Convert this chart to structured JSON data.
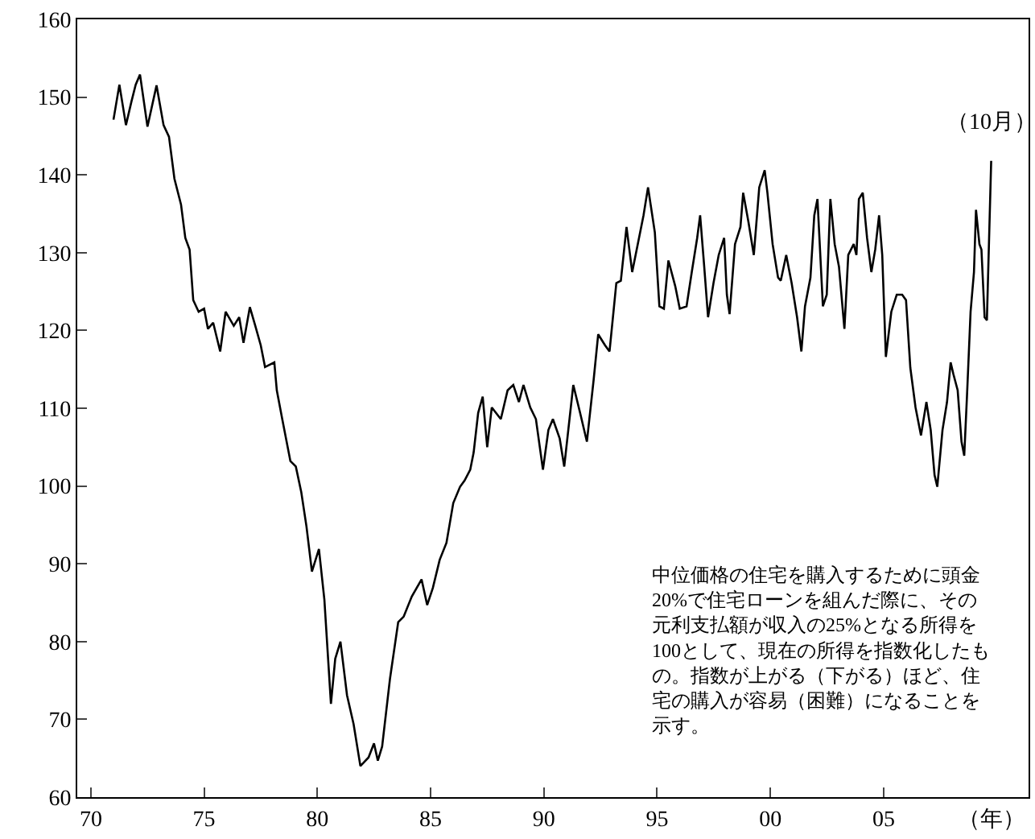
{
  "chart_data": {
    "type": "line",
    "xlabel": "（年）",
    "x": [
      1971.0,
      1971.26,
      1971.55,
      1971.79,
      1971.98,
      1972.17,
      1972.5,
      1972.9,
      1973.21,
      1973.45,
      1973.69,
      1973.98,
      1974.17,
      1974.36,
      1974.52,
      1974.76,
      1975.0,
      1975.17,
      1975.4,
      1975.71,
      1975.95,
      1976.31,
      1976.55,
      1976.74,
      1977.02,
      1977.26,
      1977.5,
      1977.69,
      1978.1,
      1978.21,
      1978.45,
      1978.81,
      1979.05,
      1979.29,
      1979.52,
      1979.76,
      1980.07,
      1980.31,
      1980.6,
      1980.79,
      1981.02,
      1981.31,
      1981.6,
      1981.9,
      1982.26,
      1982.5,
      1982.67,
      1982.86,
      1983.21,
      1983.57,
      1983.81,
      1984.17,
      1984.6,
      1984.85,
      1985.1,
      1985.4,
      1985.7,
      1986.0,
      1986.3,
      1986.5,
      1986.75,
      1986.9,
      1987.1,
      1987.3,
      1987.5,
      1987.7,
      1988.1,
      1988.4,
      1988.65,
      1988.9,
      1989.1,
      1989.4,
      1989.65,
      1989.96,
      1990.2,
      1990.4,
      1990.7,
      1990.9,
      1991.3,
      1991.6,
      1991.9,
      1992.2,
      1992.4,
      1992.7,
      1992.9,
      1993.2,
      1993.4,
      1993.65,
      1993.9,
      1994.4,
      1994.6,
      1994.9,
      1995.1,
      1995.3,
      1995.5,
      1995.8,
      1996.0,
      1996.3,
      1996.53,
      1996.77,
      1996.9,
      1997.08,
      1997.25,
      1997.49,
      1997.72,
      1997.96,
      1998.08,
      1998.2,
      1998.44,
      1998.68,
      1998.8,
      1999.03,
      1999.27,
      1999.51,
      1999.75,
      1999.87,
      2000.1,
      2000.34,
      2000.46,
      2000.7,
      2000.94,
      2001.18,
      2001.37,
      2001.53,
      2001.77,
      2001.94,
      2002.08,
      2002.32,
      2002.49,
      2002.65,
      2002.84,
      2003.03,
      2003.27,
      2003.44,
      2003.68,
      2003.8,
      2003.91,
      2004.08,
      2004.27,
      2004.46,
      2004.63,
      2004.8,
      2004.94,
      2005.1,
      2005.34,
      2005.58,
      2005.82,
      2005.99,
      2006.18,
      2006.41,
      2006.65,
      2006.89,
      2007.08,
      2007.25,
      2007.37,
      2007.6,
      2007.8,
      2007.96,
      2008.08,
      2008.27,
      2008.44,
      2008.56,
      2008.68,
      2008.84,
      2008.99,
      2009.08,
      2009.23,
      2009.32,
      2009.46,
      2009.56,
      2009.75
    ],
    "series": [
      {
        "color": "#000000",
        "values": [
          147.1,
          151.6,
          146.4,
          149.4,
          151.6,
          152.9,
          146.2,
          151.5,
          146.4,
          144.9,
          139.5,
          136.2,
          131.9,
          130.4,
          123.9,
          122.4,
          122.8,
          120.2,
          121.0,
          117.3,
          122.4,
          120.6,
          121.7,
          118.4,
          123.0,
          120.6,
          118.1,
          115.3,
          115.9,
          112.3,
          108.6,
          103.2,
          102.5,
          99.2,
          94.8,
          89.0,
          91.9,
          85.4,
          72.0,
          77.8,
          80.0,
          73.1,
          69.4,
          64.0,
          65.1,
          66.9,
          64.7,
          66.5,
          75.3,
          82.5,
          83.2,
          85.8,
          88.0,
          84.7,
          86.9,
          90.5,
          92.7,
          97.8,
          99.9,
          100.7,
          102.1,
          104.3,
          109.4,
          111.5,
          105.0,
          110.1,
          108.6,
          112.3,
          113.0,
          110.8,
          113.0,
          110.1,
          108.6,
          102.1,
          107.2,
          108.6,
          106.1,
          102.5,
          113.0,
          109.4,
          105.7,
          113.7,
          119.5,
          118.1,
          117.3,
          126.1,
          126.4,
          133.3,
          127.5,
          134.8,
          138.4,
          132.6,
          123.1,
          122.8,
          129.0,
          125.7,
          122.8,
          123.1,
          127.5,
          131.9,
          134.8,
          128.2,
          121.7,
          126.1,
          129.7,
          131.9,
          124.6,
          122.1,
          131.1,
          133.3,
          137.7,
          134.0,
          129.7,
          138.4,
          140.6,
          137.7,
          131.1,
          126.8,
          126.4,
          129.7,
          126.1,
          121.7,
          117.3,
          123.1,
          126.8,
          134.8,
          136.9,
          123.1,
          124.6,
          136.9,
          131.1,
          128.2,
          120.2,
          129.7,
          131.1,
          129.7,
          136.9,
          137.7,
          131.9,
          127.5,
          130.4,
          134.8,
          129.7,
          116.6,
          122.4,
          124.6,
          124.6,
          123.9,
          115.2,
          110.1,
          106.5,
          110.8,
          107.2,
          101.4,
          99.9,
          107.2,
          110.8,
          115.9,
          114.4,
          112.3,
          105.7,
          103.9,
          111.5,
          122.4,
          127.5,
          135.5,
          131.1,
          130.4,
          121.7,
          121.3,
          141.8
        ]
      }
    ],
    "xlim": [
      1969.4,
      2011.4
    ],
    "xticks": [
      {
        "value": 1970,
        "label": "70"
      },
      {
        "value": 1975,
        "label": "75"
      },
      {
        "value": 1980,
        "label": "80"
      },
      {
        "value": 1985,
        "label": "85"
      },
      {
        "value": 1990,
        "label": "90"
      },
      {
        "value": 1995,
        "label": "95"
      },
      {
        "value": 2000,
        "label": "00"
      },
      {
        "value": 2005,
        "label": "05"
      }
    ],
    "ylim": [
      60,
      160
    ],
    "yticks": [
      60,
      70,
      80,
      90,
      100,
      110,
      120,
      130,
      140,
      150,
      160
    ],
    "grid": false,
    "marker": "none",
    "line_style": "solid",
    "annotations": [
      {
        "text": "（10月）",
        "x": 2009.75,
        "y": 141.8
      },
      "中位価格の住宅を購入するために頭金20%で住宅ローンを組んだ際に、その元利支払額が収入の25%となる所得を100として、現在の所得を指数化したもの。指数が上がる（下がる）ほど、住宅の購入が容易（困難）になることを示す。"
    ]
  }
}
